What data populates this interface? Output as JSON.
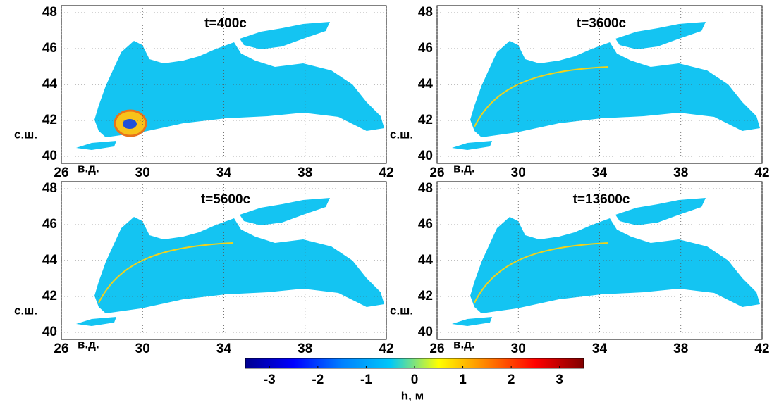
{
  "panels": [
    {
      "title": "t=400с"
    },
    {
      "title": "t=3600с"
    },
    {
      "title": "t=5600с"
    },
    {
      "title": "t=13600с"
    }
  ],
  "axes": {
    "xlim": [
      26,
      42
    ],
    "ylim": [
      39.6,
      48.4
    ],
    "xticks": [
      26,
      30,
      34,
      38,
      42
    ],
    "yticks": [
      40,
      42,
      44,
      46,
      48
    ],
    "xlabel": "в.д.",
    "ylabel": "с.ш.",
    "grid": true
  },
  "colorbar": {
    "label": "h, м",
    "lim": [
      -3.5,
      3.5
    ],
    "ticks": [
      -3,
      -2,
      -1,
      0,
      1,
      2,
      3
    ],
    "colors": [
      "#00008f",
      "#0000ff",
      "#0080ff",
      "#00c8f8",
      "#ffff00",
      "#ff8000",
      "#ff0000",
      "#800000"
    ]
  }
}
